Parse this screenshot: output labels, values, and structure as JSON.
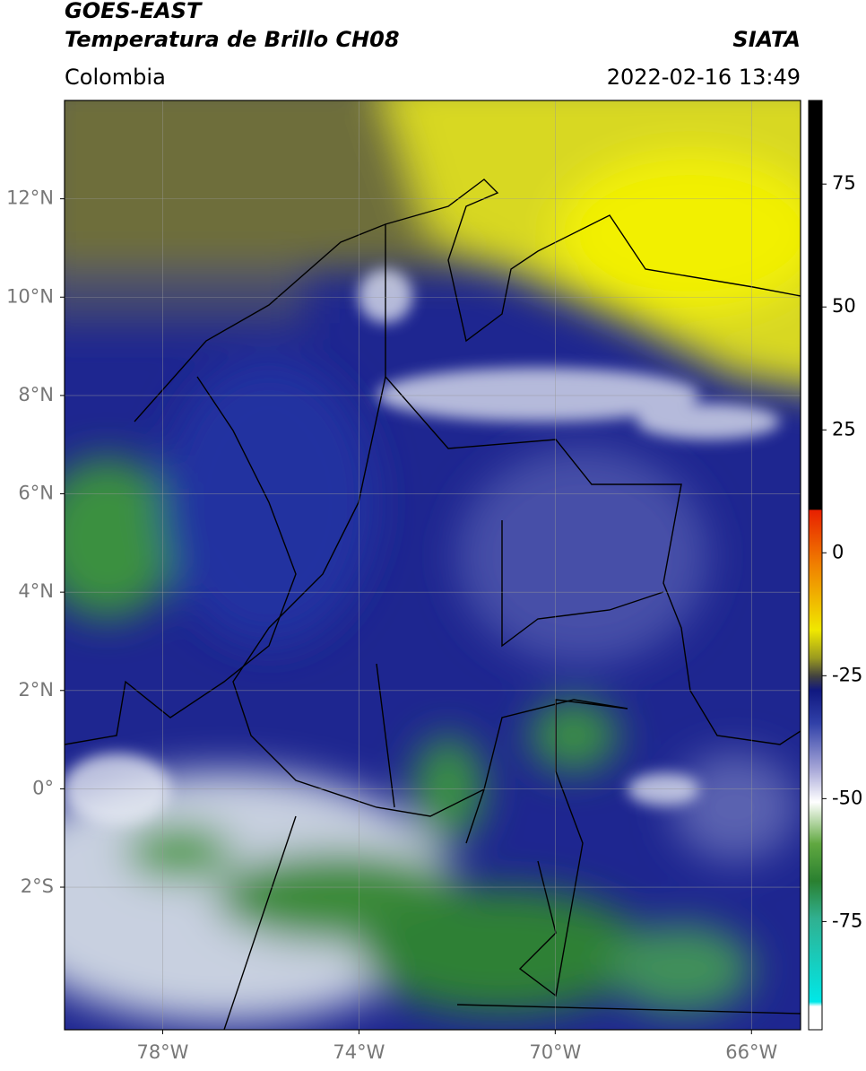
{
  "header": {
    "title": "GOES-EAST",
    "subtitle": "Temperatura de Brillo CH08",
    "source": "SIATA",
    "region": "Colombia",
    "datetime": "2022-02-16 13:49"
  },
  "map": {
    "xlim": [
      -80,
      -65
    ],
    "ylim": [
      -4.9,
      14
    ],
    "grid": true,
    "xticks": [
      {
        "value": -78,
        "label": "78°W"
      },
      {
        "value": -74,
        "label": "74°W"
      },
      {
        "value": -70,
        "label": "70°W"
      },
      {
        "value": -66,
        "label": "66°W"
      }
    ],
    "yticks": [
      {
        "value": 12,
        "label": "12°N"
      },
      {
        "value": 10,
        "label": "10°N"
      },
      {
        "value": 8,
        "label": "8°N"
      },
      {
        "value": 6,
        "label": "6°N"
      },
      {
        "value": 4,
        "label": "4°N"
      },
      {
        "value": 2,
        "label": "2°N"
      },
      {
        "value": 0,
        "label": "0°"
      },
      {
        "value": -2,
        "label": "2°S"
      }
    ]
  },
  "colorbar": {
    "clim": [
      -97,
      92
    ],
    "ticks": [
      75,
      50,
      25,
      0,
      -25,
      -50,
      -75
    ]
  }
}
